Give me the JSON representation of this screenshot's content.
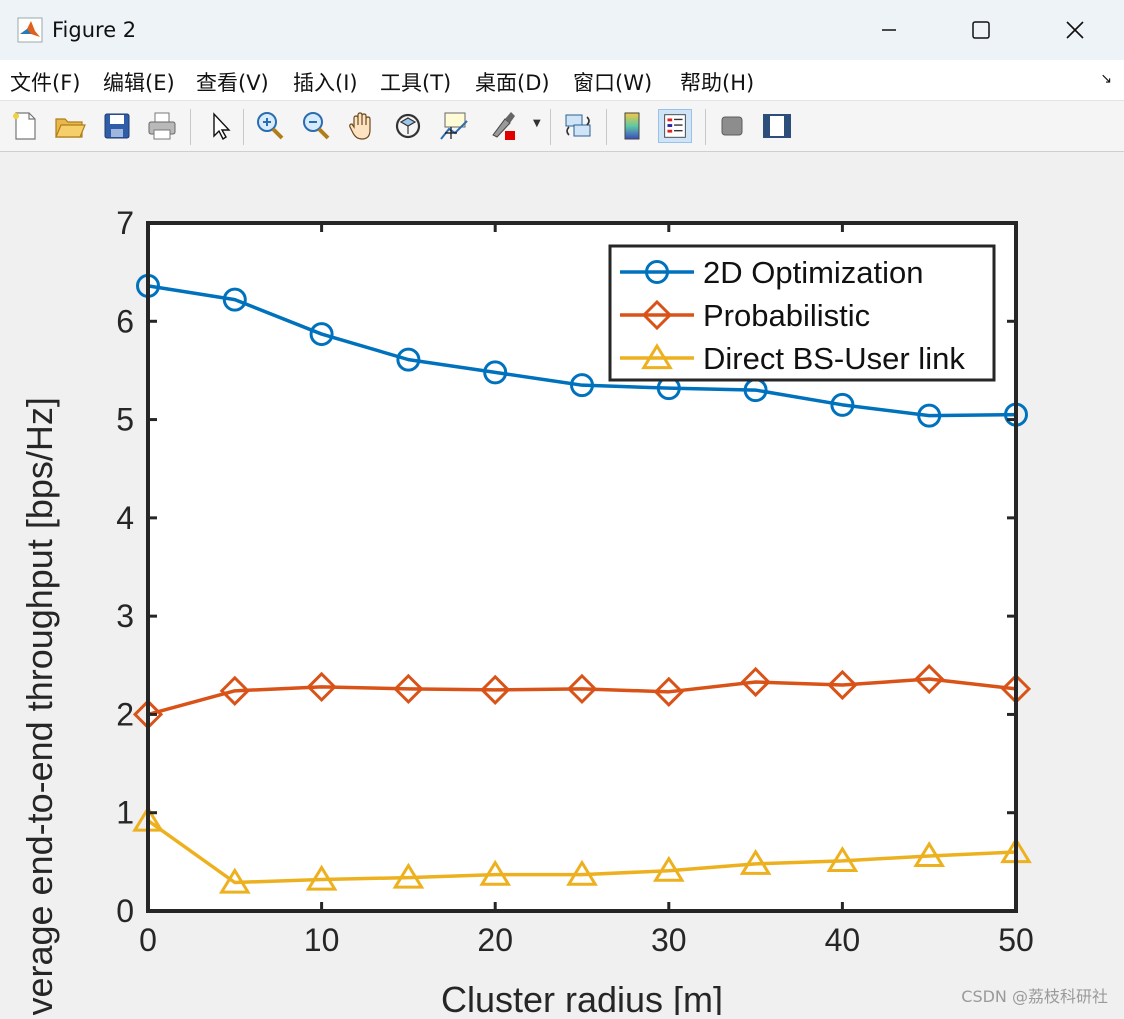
{
  "window": {
    "title": "Figure 2",
    "controls": [
      "minimize",
      "maximize",
      "close"
    ]
  },
  "menubar": {
    "items": [
      "文件(F)",
      "编辑(E)",
      "查看(V)",
      "插入(I)",
      "工具(T)",
      "桌面(D)",
      "窗口(W)",
      "帮助(H)"
    ]
  },
  "toolbar": {
    "icons": [
      "new-file-icon",
      "open-folder-icon",
      "save-icon",
      "print-icon",
      "pointer-icon",
      "zoom-in-icon",
      "zoom-out-icon",
      "pan-hand-icon",
      "rotate-3d-icon",
      "data-cursor-icon",
      "brush-icon",
      "link-plot-icon",
      "colorbar-icon",
      "legend-icon",
      "hide-plot-tools-icon",
      "show-plot-tools-icon"
    ],
    "active": "legend-icon"
  },
  "chart_data": {
    "type": "line",
    "xlabel": "Cluster radius [m]",
    "ylabel": "Average end-to-end throughput [bps/Hz]",
    "xlim": [
      0,
      50
    ],
    "ylim": [
      0,
      7
    ],
    "xticks": [
      0,
      10,
      20,
      30,
      40,
      50
    ],
    "yticks": [
      0,
      1,
      2,
      3,
      4,
      5,
      6,
      7
    ],
    "grid": false,
    "legend_position": "top-right",
    "x": [
      0,
      5,
      10,
      15,
      20,
      25,
      30,
      35,
      40,
      45,
      50
    ],
    "series": [
      {
        "name": "2D Optimization",
        "marker": "circle",
        "color": "#0072BD",
        "values": [
          6.36,
          6.22,
          5.87,
          5.61,
          5.48,
          5.35,
          5.32,
          5.3,
          5.15,
          5.04,
          5.05
        ]
      },
      {
        "name": "Probabilistic",
        "marker": "diamond",
        "color": "#D95319",
        "values": [
          2.0,
          2.24,
          2.28,
          2.26,
          2.25,
          2.26,
          2.23,
          2.33,
          2.3,
          2.36,
          2.26
        ]
      },
      {
        "name": "Direct BS-User link",
        "marker": "triangle",
        "color": "#EDB120",
        "values": [
          0.92,
          0.29,
          0.32,
          0.34,
          0.37,
          0.37,
          0.41,
          0.48,
          0.51,
          0.56,
          0.6
        ]
      }
    ]
  },
  "watermark": "CSDN @荔枝科研社"
}
